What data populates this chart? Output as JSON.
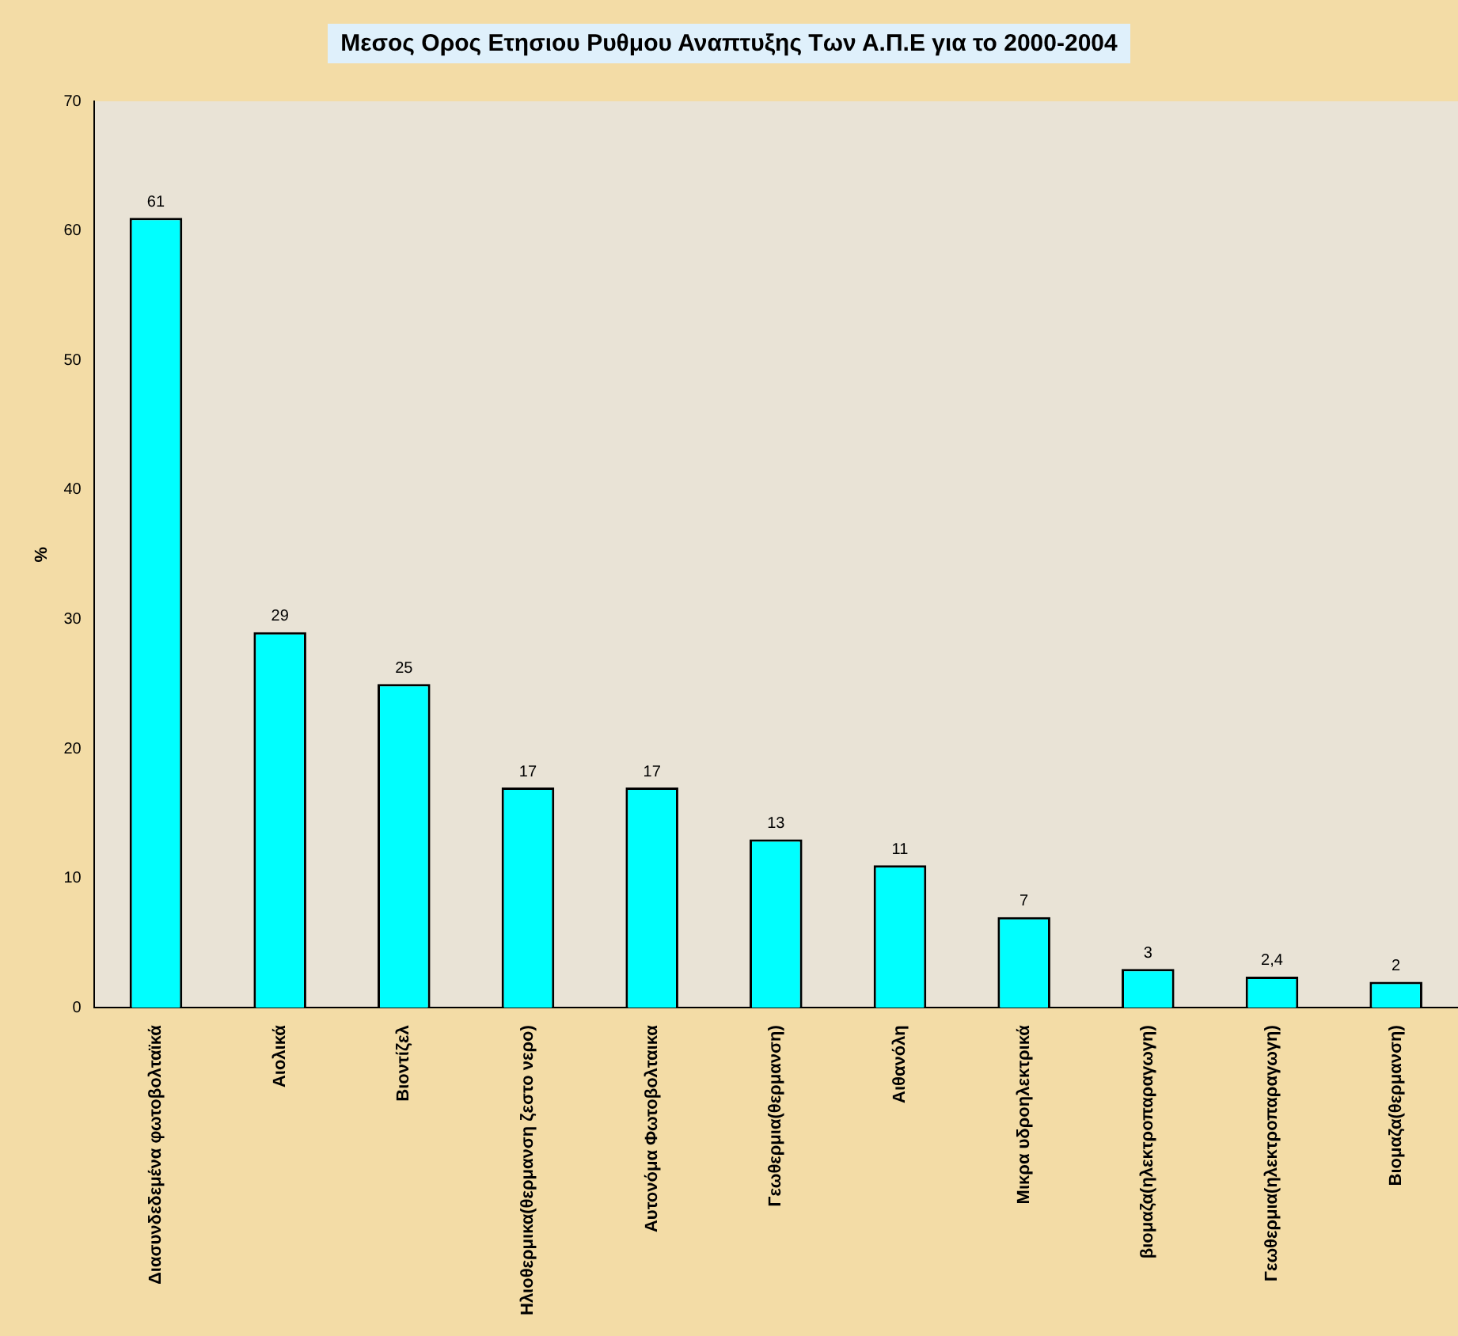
{
  "chart_data": {
    "type": "bar",
    "title": "Μεσος Ορος Ετησιου Ρυθμου Αναπτυξης Των Α.Π.Ε για το 2000-2004",
    "ylabel": "%",
    "categories": [
      "Διασυνδεδεμένα φωτοβολταϊκά",
      "Αιολικά",
      "Βιοντίζελ",
      "Ηλιοθερμικα(θερμανση ζεστο νερο)",
      "Αυτονόμα Φωτοβολταικα",
      "Γεωθερμια(θερμανση)",
      "Αιθανόλη",
      "Μικρα υδροηλεκτρικά",
      "βιομαζα(ηλεκτροπαραγωγη)",
      "Γεωθερμια(ηλεκτροπαραγωγη)",
      "Βιομαζα(θερμανση)"
    ],
    "values": [
      61,
      29,
      25,
      17,
      17,
      13,
      11,
      7,
      3,
      2.4,
      2
    ],
    "value_labels": [
      "61",
      "29",
      "25",
      "17",
      "17",
      "13",
      "11",
      "7",
      "3",
      "2,4",
      "2"
    ],
    "color": "#00ffff",
    "ylim": [
      0,
      70
    ],
    "yticks": [
      0,
      10,
      20,
      30,
      40,
      50,
      60,
      70
    ],
    "grid": false,
    "legend": false
  }
}
